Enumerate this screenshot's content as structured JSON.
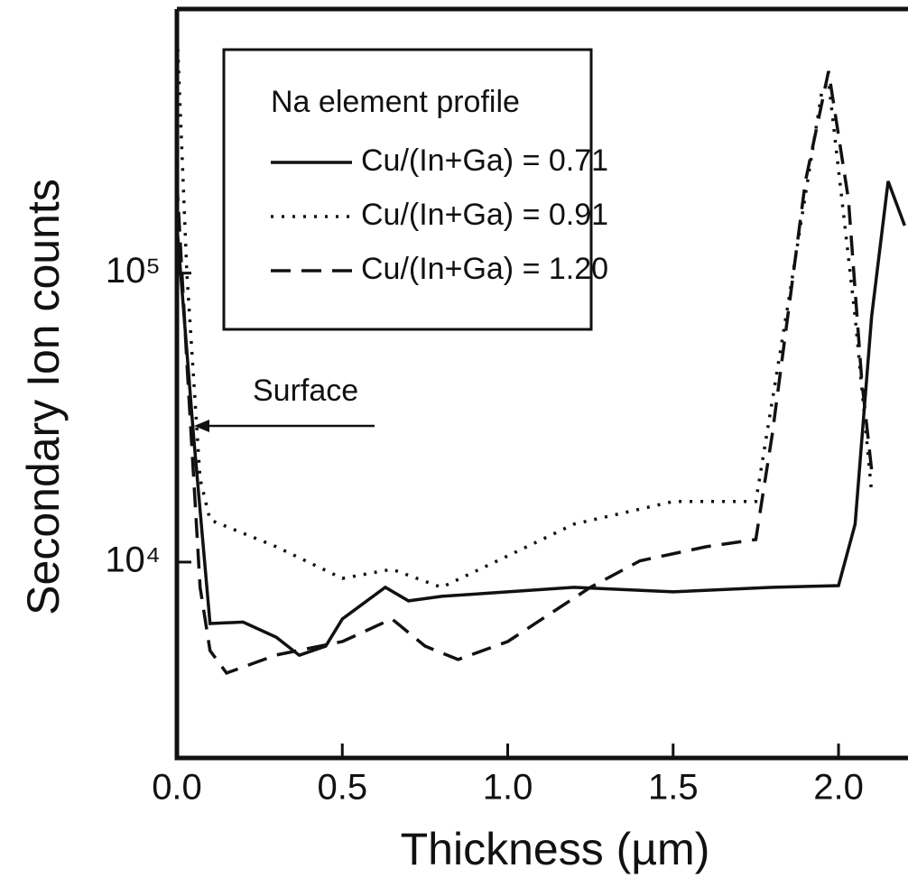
{
  "chart_data": {
    "type": "line",
    "x_label": "Thickness (µm)",
    "y_label": "Secondary Ion counts",
    "y_log": true,
    "xlim": [
      0,
      2.21
    ],
    "ylim": [
      2100,
      820000
    ],
    "xticks": [
      {
        "value": 0,
        "label": "0.0"
      },
      0.5,
      {
        "value": 1,
        "label": "1.0"
      },
      1.5,
      {
        "value": 2,
        "label": "2.0"
      }
    ],
    "yticks": [
      {
        "value": 10000,
        "label": "10⁴"
      },
      {
        "value": 100000,
        "label": "10⁵"
      }
    ],
    "legend_title": "Na element profile",
    "annotation": "Surface",
    "series": [
      {
        "name": "Cu/(In+Ga) = 0.71",
        "color": "#111111",
        "style": "solid",
        "x": [
          0,
          0.05,
          0.1,
          0.2,
          0.3,
          0.37,
          0.45,
          0.5,
          0.63,
          0.7,
          0.8,
          1.0,
          1.2,
          1.5,
          1.8,
          2.0,
          2.05,
          2.1,
          2.15,
          2.2
        ],
        "values": [
          146000,
          27700,
          6130,
          6200,
          5500,
          4760,
          5120,
          6360,
          8180,
          7340,
          7610,
          7890,
          8180,
          7890,
          8180,
          8290,
          13530,
          70800,
          208000,
          146000
        ]
      },
      {
        "name": "Cu/(In+Ga) = 0.91",
        "color": "#111111",
        "style": "dotted",
        "x": [
          0,
          0.03,
          0.07,
          0.1,
          0.2,
          0.3,
          0.5,
          0.65,
          0.8,
          1.0,
          1.2,
          1.5,
          1.75,
          1.85,
          1.95,
          1.97,
          2.05,
          2.1
        ],
        "values": [
          708000,
          100000,
          19400,
          14000,
          12590,
          11300,
          8780,
          9440,
          8180,
          10500,
          13530,
          16200,
          16200,
          81600,
          428000,
          460000,
          70800,
          17400
        ]
      },
      {
        "name": "Cu/(In+Ga) = 1.20",
        "color": "#111111",
        "style": "dashed",
        "x": [
          0,
          0.03,
          0.07,
          0.1,
          0.15,
          0.3,
          0.5,
          0.65,
          0.75,
          0.85,
          1.0,
          1.25,
          1.4,
          1.6,
          1.75,
          1.8,
          1.9,
          1.97,
          2.03,
          2.07,
          2.1
        ],
        "values": [
          208000,
          49400,
          8180,
          4940,
          4130,
          4770,
          5310,
          6360,
          5120,
          4600,
          5310,
          8180,
          10100,
          11300,
          11970,
          27800,
          208000,
          500000,
          180000,
          42800,
          20800
        ]
      }
    ]
  }
}
